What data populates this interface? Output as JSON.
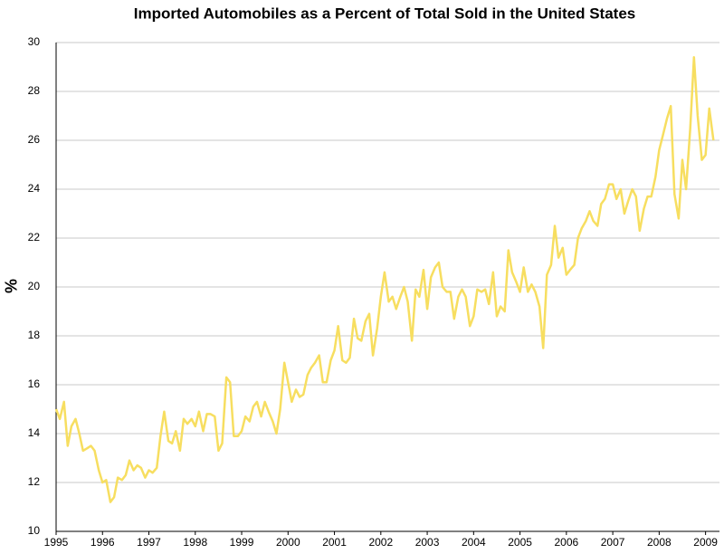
{
  "chart_data": {
    "type": "line",
    "title": "Imported Automobiles as a Percent of Total Sold in the United States",
    "y_label": "%",
    "x": [
      1995,
      1995.08,
      1995.17,
      1995.25,
      1995.33,
      1995.42,
      1995.5,
      1995.58,
      1995.67,
      1995.75,
      1995.83,
      1995.92,
      1996,
      1996.08,
      1996.17,
      1996.25,
      1996.33,
      1996.42,
      1996.5,
      1996.58,
      1996.67,
      1996.75,
      1996.83,
      1996.92,
      1997,
      1997.08,
      1997.17,
      1997.25,
      1997.33,
      1997.42,
      1997.5,
      1997.58,
      1997.67,
      1997.75,
      1997.83,
      1997.92,
      1998,
      1998.08,
      1998.17,
      1998.25,
      1998.33,
      1998.42,
      1998.5,
      1998.58,
      1998.67,
      1998.75,
      1998.83,
      1998.92,
      1999,
      1999.08,
      1999.17,
      1999.25,
      1999.33,
      1999.42,
      1999.5,
      1999.58,
      1999.67,
      1999.75,
      1999.83,
      1999.92,
      2000,
      2000.08,
      2000.17,
      2000.25,
      2000.33,
      2000.42,
      2000.5,
      2000.58,
      2000.67,
      2000.75,
      2000.83,
      2000.92,
      2001,
      2001.08,
      2001.17,
      2001.25,
      2001.33,
      2001.42,
      2001.5,
      2001.58,
      2001.67,
      2001.75,
      2001.83,
      2001.92,
      2002,
      2002.08,
      2002.17,
      2002.25,
      2002.33,
      2002.42,
      2002.5,
      2002.58,
      2002.67,
      2002.75,
      2002.83,
      2002.92,
      2003,
      2003.08,
      2003.17,
      2003.25,
      2003.33,
      2003.42,
      2003.5,
      2003.58,
      2003.67,
      2003.75,
      2003.83,
      2003.92,
      2004,
      2004.08,
      2004.17,
      2004.25,
      2004.33,
      2004.42,
      2004.5,
      2004.58,
      2004.67,
      2004.75,
      2004.83,
      2004.92,
      2005,
      2005.08,
      2005.17,
      2005.25,
      2005.33,
      2005.42,
      2005.5,
      2005.58,
      2005.67,
      2005.75,
      2005.83,
      2005.92,
      2006,
      2006.08,
      2006.17,
      2006.25,
      2006.33,
      2006.42,
      2006.5,
      2006.58,
      2006.67,
      2006.75,
      2006.83,
      2006.92,
      2007,
      2007.08,
      2007.17,
      2007.25,
      2007.33,
      2007.42,
      2007.5,
      2007.58,
      2007.67,
      2007.75,
      2007.83,
      2007.92,
      2008,
      2008.08,
      2008.17,
      2008.25,
      2008.33,
      2008.42,
      2008.5,
      2008.58,
      2008.67,
      2008.75,
      2008.83,
      2008.92,
      2009,
      2009.08,
      2009.17
    ],
    "series": [
      {
        "color": "#f7de60",
        "values": [
          15.0,
          14.6,
          15.3,
          13.5,
          14.3,
          14.6,
          14.0,
          13.3,
          13.4,
          13.5,
          13.3,
          12.5,
          12.0,
          12.1,
          11.2,
          11.4,
          12.2,
          12.1,
          12.3,
          12.9,
          12.5,
          12.7,
          12.6,
          12.2,
          12.5,
          12.4,
          12.6,
          13.9,
          14.9,
          13.7,
          13.6,
          14.1,
          13.3,
          14.6,
          14.4,
          14.6,
          14.3,
          14.9,
          14.1,
          14.8,
          14.8,
          14.7,
          13.3,
          13.6,
          16.3,
          16.1,
          13.9,
          13.9,
          14.1,
          14.7,
          14.5,
          15.1,
          15.3,
          14.7,
          15.3,
          14.9,
          14.5,
          14.0,
          15.0,
          16.9,
          16.1,
          15.3,
          15.8,
          15.5,
          15.6,
          16.4,
          16.7,
          16.9,
          17.2,
          16.1,
          16.1,
          17.0,
          17.4,
          18.4,
          17.0,
          16.9,
          17.1,
          18.7,
          17.9,
          17.8,
          18.6,
          18.9,
          17.2,
          18.3,
          19.6,
          20.6,
          19.4,
          19.6,
          19.1,
          19.6,
          20.0,
          19.4,
          17.8,
          19.9,
          19.6,
          20.7,
          19.1,
          20.4,
          20.8,
          21.0,
          20.0,
          19.8,
          19.8,
          18.7,
          19.6,
          19.9,
          19.6,
          18.4,
          18.8,
          19.9,
          19.8,
          19.9,
          19.3,
          20.6,
          18.8,
          19.2,
          19.0,
          21.5,
          20.6,
          20.2,
          19.8,
          20.8,
          19.8,
          20.1,
          19.8,
          19.2,
          17.5,
          20.5,
          20.9,
          22.5,
          21.2,
          21.6,
          20.5,
          20.7,
          20.9,
          22.0,
          22.4,
          22.7,
          23.1,
          22.7,
          22.5,
          23.4,
          23.6,
          24.2,
          24.2,
          23.6,
          24.0,
          23.0,
          23.5,
          24.0,
          23.7,
          22.3,
          23.2,
          23.7,
          23.7,
          24.5,
          25.6,
          26.2,
          26.9,
          27.4,
          23.8,
          22.8,
          25.2,
          24.0,
          26.5,
          29.4,
          27.0,
          25.2,
          25.4,
          27.3,
          26.0
        ]
      }
    ],
    "xlim": [
      1995,
      2009.3
    ],
    "xticks": [
      1995,
      1996,
      1997,
      1998,
      1999,
      2000,
      2001,
      2002,
      2003,
      2004,
      2005,
      2006,
      2007,
      2008,
      2009
    ],
    "ylim": [
      10,
      30
    ],
    "yticks": [
      10,
      12,
      14,
      16,
      18,
      20,
      22,
      24,
      26,
      28,
      30
    ],
    "grid": true
  }
}
